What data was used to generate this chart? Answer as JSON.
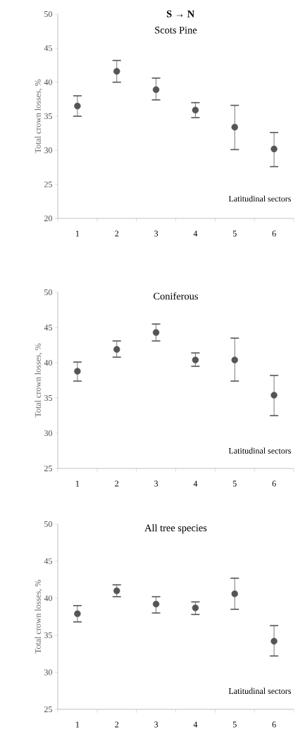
{
  "chart_data": [
    {
      "type": "scatter",
      "title": "Scots Pine",
      "xlabel": "Latitudinal sectors",
      "ylabel": "Total crown losses, %",
      "annotations": [
        "S → N"
      ],
      "marker": "circle",
      "categories": [
        "1",
        "2",
        "3",
        "4",
        "5",
        "6"
      ],
      "ylim": [
        20,
        50
      ],
      "yticks": [
        20,
        25,
        30,
        35,
        40,
        45,
        50
      ],
      "series": [
        {
          "color": "#555555",
          "values": [
            36.5,
            41.6,
            38.9,
            35.9,
            33.4,
            30.2
          ],
          "errors": [
            [
              35.0,
              38.0
            ],
            [
              40.0,
              43.2
            ],
            [
              37.4,
              40.6
            ],
            [
              34.8,
              37.0
            ],
            [
              30.1,
              36.6
            ],
            [
              27.6,
              32.6
            ]
          ]
        }
      ]
    },
    {
      "type": "scatter",
      "title": "Coniferous",
      "xlabel": "Latitudinal sectors",
      "ylabel": "Total crown losses, %",
      "marker": "circle",
      "categories": [
        "1",
        "2",
        "3",
        "4",
        "5",
        "6"
      ],
      "ylim": [
        25,
        50
      ],
      "yticks": [
        25,
        30,
        35,
        40,
        45,
        50
      ],
      "series": [
        {
          "color": "#555555",
          "values": [
            38.8,
            41.9,
            44.3,
            40.4,
            40.4,
            35.4
          ],
          "errors": [
            [
              37.4,
              40.1
            ],
            [
              40.8,
              43.1
            ],
            [
              43.1,
              45.5
            ],
            [
              39.5,
              41.4
            ],
            [
              37.4,
              43.5
            ],
            [
              32.5,
              38.2
            ]
          ]
        }
      ]
    },
    {
      "type": "scatter",
      "title": "All tree species",
      "xlabel": "Latitudinal sectors",
      "ylabel": "Total crown losses, %",
      "marker": "circle",
      "categories": [
        "1",
        "2",
        "3",
        "4",
        "5",
        "6"
      ],
      "ylim": [
        25,
        50
      ],
      "yticks": [
        25,
        30,
        35,
        40,
        45,
        50
      ],
      "series": [
        {
          "color": "#555555",
          "values": [
            37.9,
            41.0,
            39.2,
            38.7,
            40.6,
            34.2
          ],
          "errors": [
            [
              36.8,
              39.0
            ],
            [
              40.2,
              41.8
            ],
            [
              38.0,
              40.2
            ],
            [
              37.8,
              39.5
            ],
            [
              38.5,
              42.7
            ],
            [
              32.2,
              36.3
            ]
          ]
        }
      ]
    }
  ]
}
